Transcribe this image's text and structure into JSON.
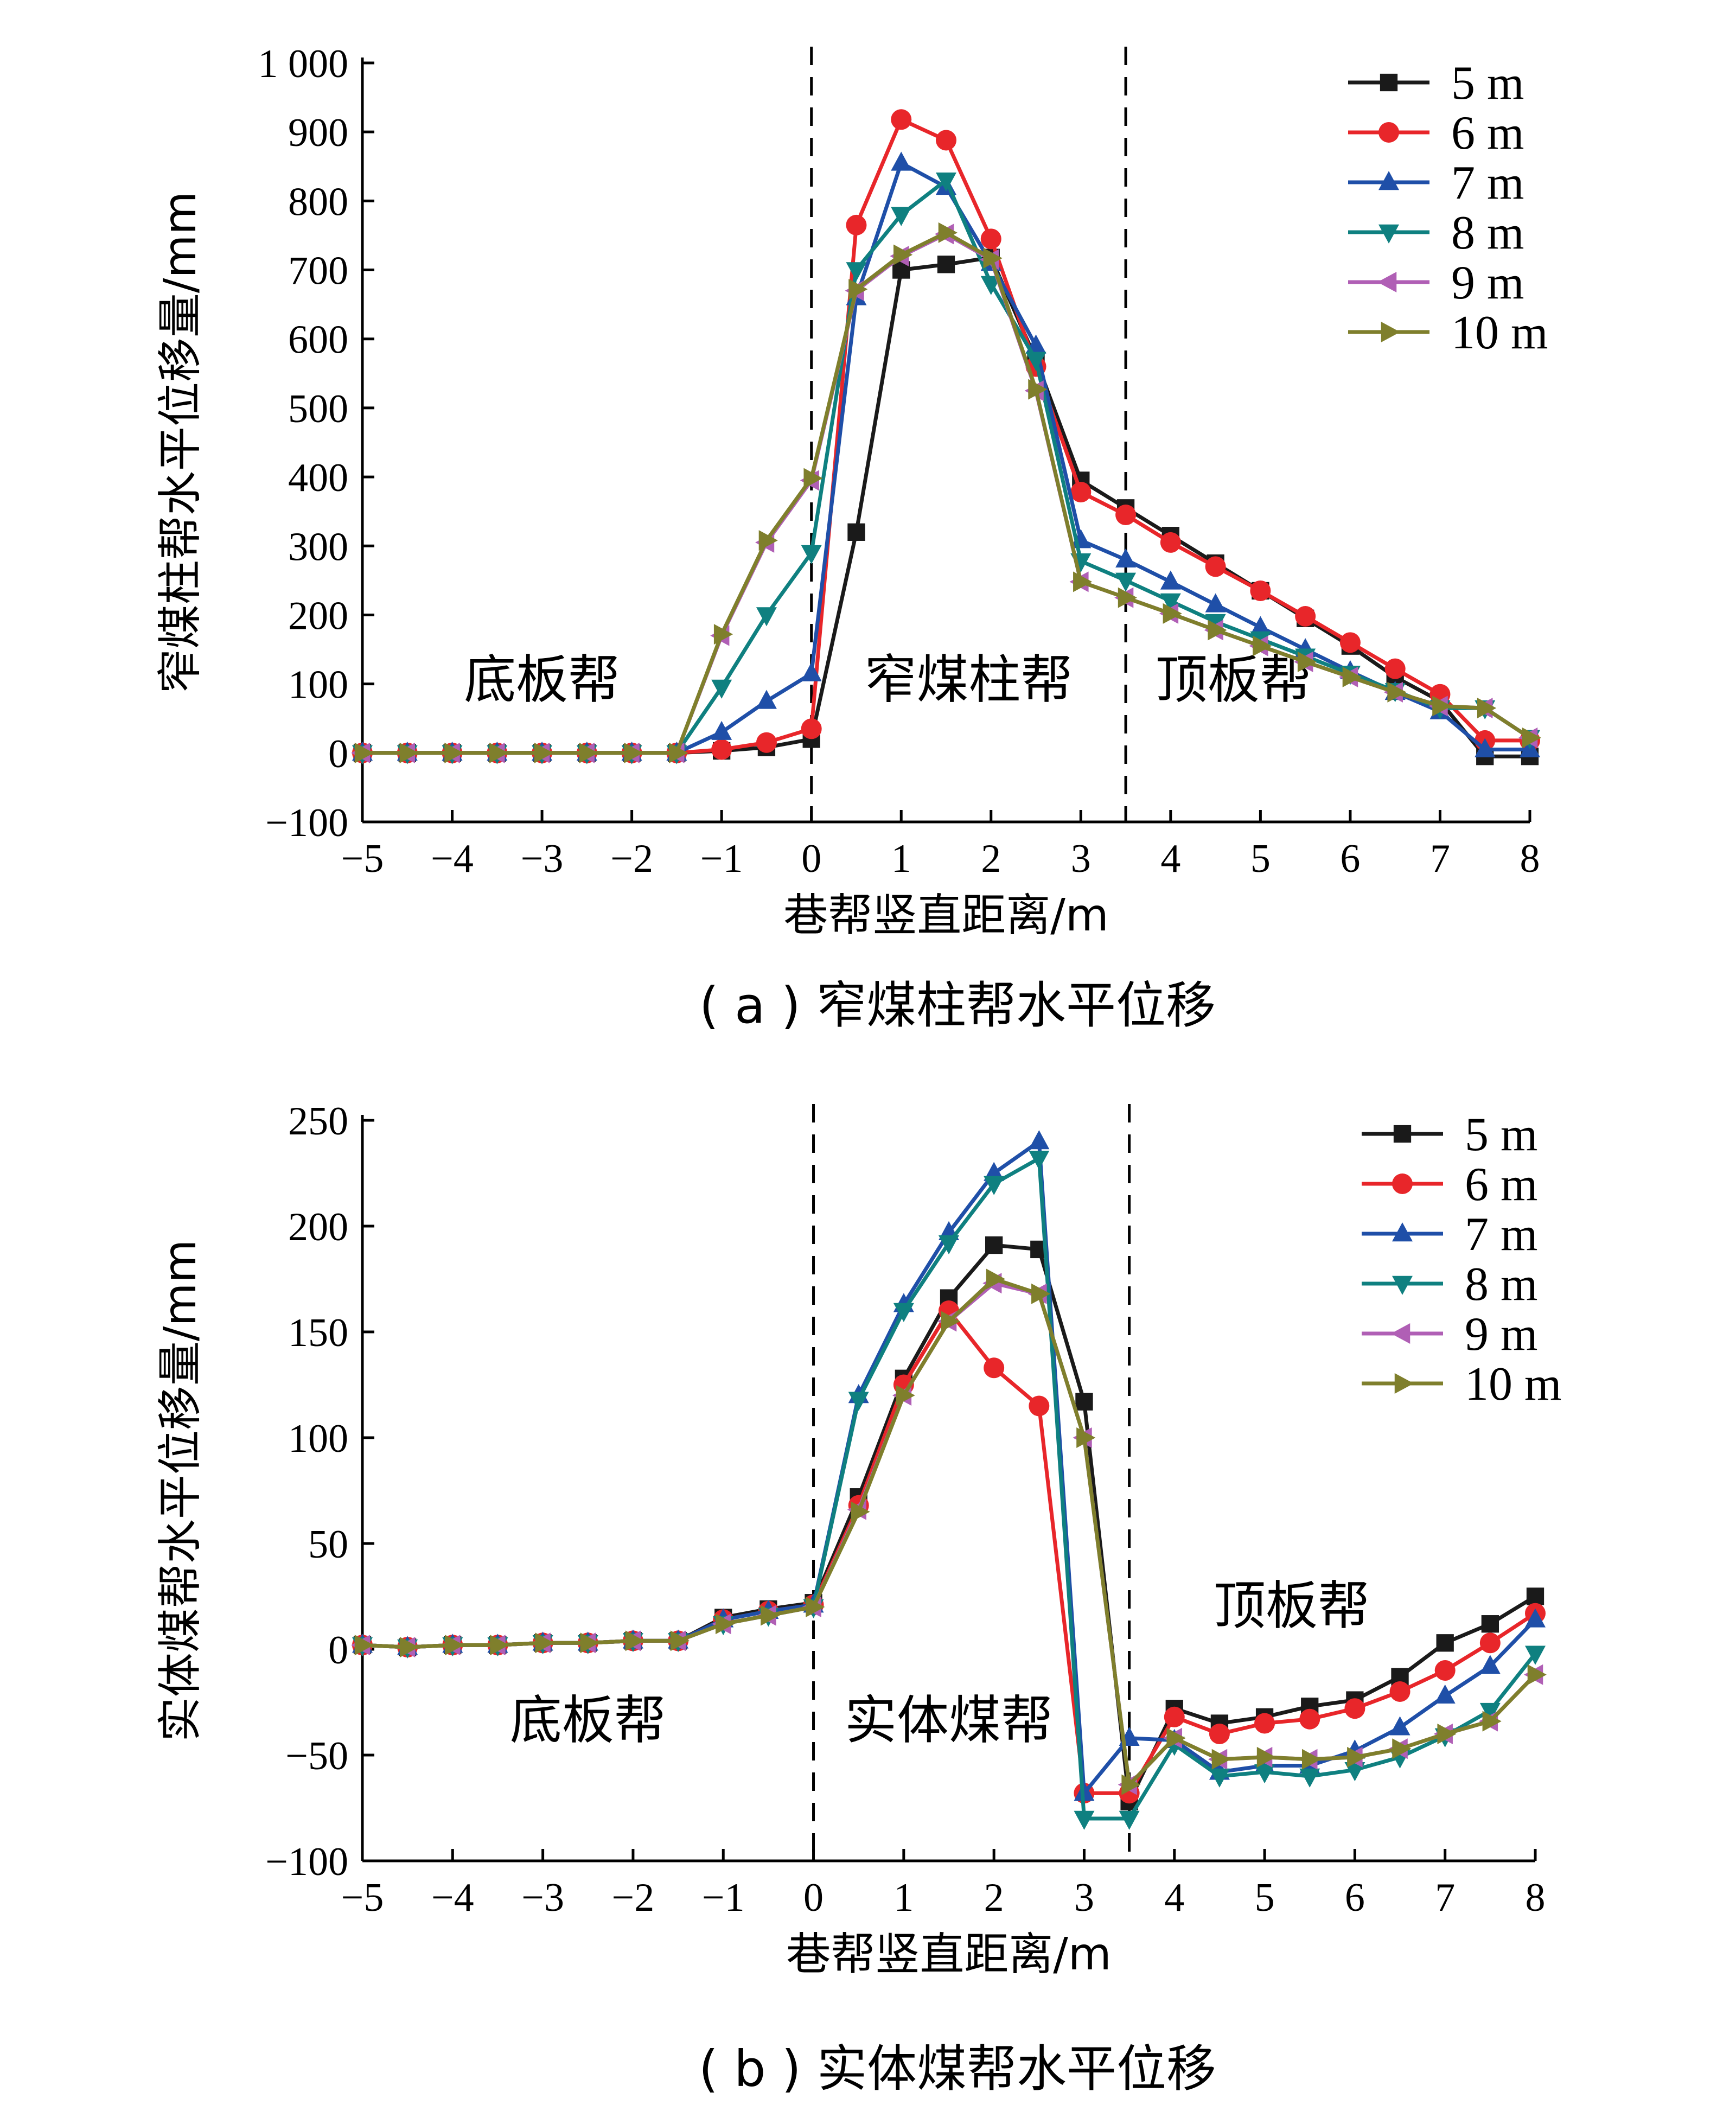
{
  "chart_data": [
    {
      "type": "line",
      "caption": "( a ) 窄煤柱帮水平位移",
      "xlabel": "巷帮竖直距离/m",
      "ylabel": "窄煤柱帮水平位移量/mm",
      "xlim": [
        -5,
        8
      ],
      "ylim": [
        -100,
        1000
      ],
      "xticks": [
        -5,
        -4,
        -3,
        -2,
        -1,
        0,
        1,
        2,
        3,
        4,
        5,
        6,
        7,
        8
      ],
      "yticks": [
        -100,
        0,
        100,
        200,
        300,
        400,
        500,
        600,
        700,
        800,
        900,
        1000
      ],
      "ytick_labels": [
        "−100",
        "0",
        "100",
        "200",
        "300",
        "400",
        "500",
        "600",
        "700",
        "800",
        "900",
        "1 000"
      ],
      "xtick_labels": [
        "−5",
        "−4",
        "−3",
        "−2",
        "−1",
        "0",
        "1",
        "2",
        "3",
        "4",
        "5",
        "6",
        "7",
        "8"
      ],
      "dividers": [
        0,
        3.5
      ],
      "regions": [
        {
          "label": "底板帮",
          "x": -3,
          "y": 80
        },
        {
          "label": "窄煤柱帮",
          "x": 1.75,
          "y": 80
        },
        {
          "label": "顶板帮",
          "x": 4.7,
          "y": 80
        }
      ],
      "legend_position": "top-right",
      "x": [
        -5,
        -4.5,
        -4,
        -3.5,
        -3,
        -2.5,
        -2,
        -1.5,
        -1,
        -0.5,
        0,
        0.5,
        1,
        1.5,
        2,
        2.5,
        3,
        3.5,
        4,
        4.5,
        5,
        5.5,
        6,
        6.5,
        7,
        7.5,
        8
      ],
      "series": [
        {
          "name": "5 m",
          "color": "#1a1a1a",
          "marker": "square",
          "values": [
            0,
            0,
            0,
            0,
            0,
            0,
            0,
            0,
            3,
            8,
            20,
            320,
            700,
            708,
            718,
            570,
            395,
            355,
            315,
            275,
            235,
            195,
            155,
            110,
            75,
            -5,
            -5
          ]
        },
        {
          "name": "6 m",
          "color": "#e8262a",
          "marker": "circle",
          "values": [
            0,
            0,
            0,
            0,
            0,
            0,
            0,
            0,
            5,
            15,
            35,
            765,
            918,
            888,
            745,
            560,
            378,
            345,
            305,
            270,
            235,
            198,
            160,
            122,
            85,
            18,
            18
          ]
        },
        {
          "name": "7 m",
          "color": "#1f4fa8",
          "marker": "triangle-up",
          "values": [
            0,
            0,
            0,
            0,
            0,
            0,
            0,
            0,
            30,
            75,
            115,
            660,
            855,
            820,
            710,
            590,
            308,
            280,
            248,
            215,
            182,
            150,
            118,
            88,
            60,
            5,
            5
          ]
        },
        {
          "name": "8 m",
          "color": "#0f8080",
          "marker": "triangle-down",
          "values": [
            0,
            0,
            0,
            0,
            0,
            0,
            0,
            0,
            95,
            200,
            290,
            700,
            780,
            830,
            680,
            570,
            278,
            250,
            220,
            190,
            165,
            140,
            115,
            90,
            65,
            65,
            22
          ]
        },
        {
          "name": "9 m",
          "color": "#b05fb5",
          "marker": "triangle-left",
          "values": [
            0,
            0,
            0,
            0,
            0,
            0,
            0,
            0,
            170,
            305,
            395,
            670,
            720,
            752,
            715,
            525,
            248,
            225,
            202,
            178,
            155,
            132,
            110,
            88,
            68,
            65,
            22
          ]
        },
        {
          "name": "10 m",
          "color": "#7f7f2c",
          "marker": "triangle-right",
          "values": [
            0,
            0,
            0,
            0,
            0,
            0,
            0,
            0,
            172,
            308,
            398,
            672,
            722,
            754,
            717,
            527,
            248,
            225,
            202,
            178,
            155,
            132,
            110,
            88,
            68,
            65,
            22
          ]
        }
      ]
    },
    {
      "type": "line",
      "caption": "( b ) 实体煤帮水平位移",
      "xlabel": "巷帮竖直距离/m",
      "ylabel": "实体煤帮水平位移量/mm",
      "xlim": [
        -5,
        8
      ],
      "ylim": [
        -100,
        250
      ],
      "xticks": [
        -5,
        -4,
        -3,
        -2,
        -1,
        0,
        1,
        2,
        3,
        4,
        5,
        6,
        7,
        8
      ],
      "yticks": [
        -100,
        -50,
        0,
        50,
        100,
        150,
        200,
        250
      ],
      "ytick_labels": [
        "−100",
        "−50",
        "0",
        "50",
        "100",
        "150",
        "200",
        "250"
      ],
      "xtick_labels": [
        "−5",
        "−4",
        "−3",
        "−2",
        "−1",
        "0",
        "1",
        "2",
        "3",
        "4",
        "5",
        "6",
        "7",
        "8"
      ],
      "dividers": [
        0,
        3.5
      ],
      "regions": [
        {
          "label": "底板帮",
          "x": -2.5,
          "y": -42
        },
        {
          "label": "实体煤帮",
          "x": 1.5,
          "y": -42
        },
        {
          "label": "顶板帮",
          "x": 5.3,
          "y": 12
        }
      ],
      "legend_position": "top-right",
      "x": [
        -5,
        -4.5,
        -4,
        -3.5,
        -3,
        -2.5,
        -2,
        -1.5,
        -1,
        -0.5,
        0,
        0.5,
        1,
        1.5,
        2,
        2.5,
        3,
        3.5,
        4,
        4.5,
        5,
        5.5,
        6,
        6.5,
        7,
        7.5,
        8
      ],
      "series": [
        {
          "name": "5 m",
          "color": "#1a1a1a",
          "marker": "square",
          "values": [
            2,
            1,
            2,
            2,
            3,
            3,
            4,
            4,
            15,
            19,
            22,
            72,
            128,
            166,
            191,
            189,
            117,
            -72,
            -28,
            -35,
            -32,
            -27,
            -24,
            -13,
            3,
            12,
            25
          ]
        },
        {
          "name": "6 m",
          "color": "#e8262a",
          "marker": "circle",
          "values": [
            2,
            1,
            2,
            2,
            3,
            3,
            4,
            4,
            14,
            18,
            21,
            68,
            125,
            160,
            133,
            115,
            -68,
            -68,
            -32,
            -40,
            -35,
            -33,
            -28,
            -20,
            -10,
            3,
            17
          ]
        },
        {
          "name": "7 m",
          "color": "#1f4fa8",
          "marker": "triangle-up",
          "values": [
            2,
            1,
            2,
            2,
            3,
            3,
            4,
            4,
            14,
            18,
            21,
            120,
            163,
            197,
            225,
            240,
            -68,
            -42,
            -43,
            -58,
            -55,
            -55,
            -48,
            -37,
            -22,
            -8,
            14
          ]
        },
        {
          "name": "8 m",
          "color": "#0f8080",
          "marker": "triangle-down",
          "values": [
            2,
            1,
            2,
            2,
            3,
            3,
            4,
            4,
            12,
            16,
            20,
            118,
            160,
            192,
            220,
            232,
            -80,
            -80,
            -45,
            -60,
            -58,
            -60,
            -57,
            -51,
            -41,
            -29,
            -2
          ]
        },
        {
          "name": "9 m",
          "color": "#b05fb5",
          "marker": "triangle-left",
          "values": [
            2,
            1,
            2,
            2,
            3,
            3,
            4,
            4,
            12,
            16,
            20,
            66,
            120,
            155,
            173,
            168,
            100,
            -64,
            -42,
            -52,
            -51,
            -52,
            -51,
            -47,
            -40,
            -34,
            -12
          ]
        },
        {
          "name": "10 m",
          "color": "#7f7f2c",
          "marker": "triangle-right",
          "values": [
            2,
            1,
            2,
            2,
            3,
            3,
            4,
            4,
            12,
            16,
            20,
            65,
            120,
            155,
            175,
            168,
            100,
            -64,
            -42,
            -52,
            -51,
            -52,
            -51,
            -47,
            -40,
            -34,
            -12
          ]
        }
      ]
    }
  ]
}
